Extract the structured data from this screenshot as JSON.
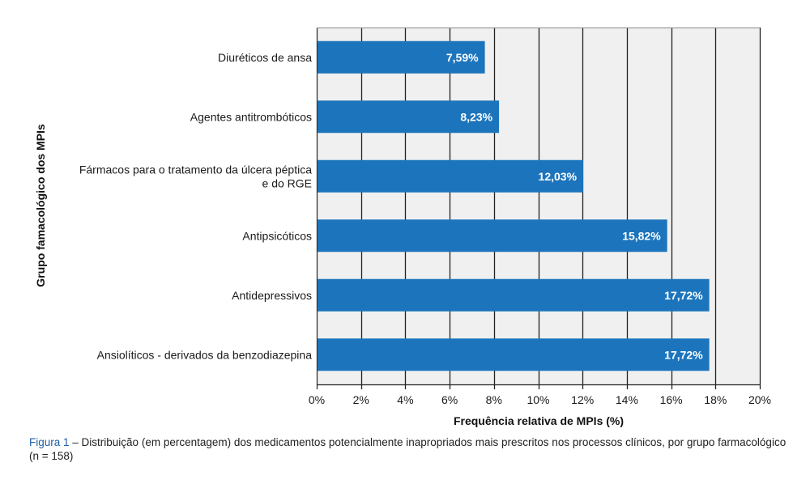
{
  "chart_data": {
    "type": "bar",
    "orientation": "horizontal",
    "categories": [
      "Diuréticos de ansa",
      "Agentes antitrombóticos",
      "Fármacos para o tratamento da úlcera péptica e do RGE",
      "Antipsicóticos",
      "Antidepressivos",
      "Ansiolíticos - derivados da benzodiazepina"
    ],
    "category_label_lines": [
      [
        "Diuréticos de ansa"
      ],
      [
        "Agentes antitrombóticos"
      ],
      [
        "Fármacos para o tratamento da úlcera péptica",
        "e do RGE"
      ],
      [
        "Antipsicóticos"
      ],
      [
        "Antidepressivos"
      ],
      [
        "Ansiolíticos - derivados da benzodiazepina"
      ]
    ],
    "values": [
      7.59,
      8.23,
      12.03,
      15.82,
      17.72,
      17.72
    ],
    "data_labels": [
      "7,59%",
      "8,23%",
      "12,03%",
      "15,82%",
      "17,72%",
      "17,72%"
    ],
    "xlabel": "Frequência relativa de MPIs (%)",
    "ylabel": "Grupo famacológico dos MPIs",
    "xlim": [
      0,
      20
    ],
    "xticks": [
      0,
      2,
      4,
      6,
      8,
      10,
      12,
      14,
      16,
      18,
      20
    ],
    "xtick_labels": [
      "0%",
      "2%",
      "4%",
      "6%",
      "8%",
      "10%",
      "12%",
      "14%",
      "16%",
      "18%",
      "20%"
    ],
    "grid": true,
    "legend": "none",
    "colors": {
      "bar": "#1c75bc",
      "plot_bg": "#f0f0f0",
      "grid": "#222222",
      "data_label": "#ffffff"
    }
  },
  "caption": {
    "figure_ref": "Figura 1",
    "text": " – Distribuição (em percentagem) dos medicamentos potencialmente inapropriados mais prescritos nos processos clínicos, por grupo farmacológico (n = 158)"
  }
}
